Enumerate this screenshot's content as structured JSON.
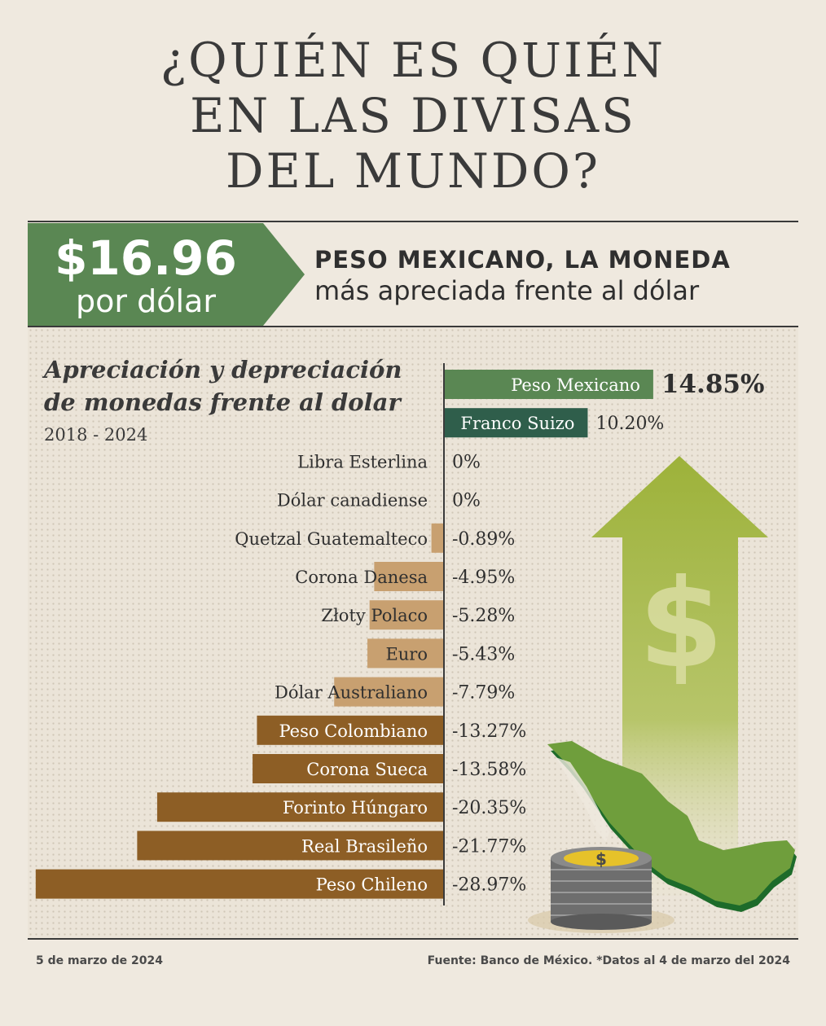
{
  "header": {
    "title_lines": [
      "¿QUIÉN ES QUIÉN",
      "EN LAS DIVISAS",
      "DEL MUNDO?"
    ]
  },
  "banner": {
    "price": "$16.96",
    "price_unit": "por dólar",
    "headline_bold": "PESO MEXICANO, LA MONEDA",
    "headline_rest": "más apreciada frente al dólar"
  },
  "chart_data": {
    "type": "bar",
    "orientation": "horizontal",
    "title": "Apreciación y depreciación de monedas frente al dolar",
    "subtitle": "2018 - 2024",
    "categories": [
      "Peso Mexicano",
      "Franco Suizo",
      "Libra Esterlina",
      "Dólar canadiense",
      "Quetzal Guatemalteco",
      "Corona Danesa",
      "Złoty Polaco",
      "Euro",
      "Dólar Australiano",
      "Peso Colombiano",
      "Corona Sueca",
      "Forinto Húngaro",
      "Real Brasileño",
      "Peso Chileno"
    ],
    "values": [
      14.85,
      10.2,
      0,
      0,
      -0.89,
      -4.95,
      -5.28,
      -5.43,
      -7.79,
      -13.27,
      -13.58,
      -20.35,
      -21.77,
      -28.97
    ],
    "value_labels": [
      "14.85%",
      "10.20%",
      "0%",
      "0%",
      "-0.89%",
      "-4.95%",
      "-5.28%",
      "-5.43%",
      "-7.79%",
      "-13.27%",
      "-13.58%",
      "-20.35%",
      "-21.77%",
      "-28.97%"
    ],
    "colors": {
      "peso_mexicano": "#5a8753",
      "franco_suizo": "#2f5e4b",
      "light_negative": "#c8a070",
      "dark_negative": "#8d5e25"
    }
  },
  "illustration": {
    "arrow_icon": "up-arrow-dollar-icon",
    "map_icon": "mexico-map-icon",
    "coins_icon": "coin-stack-icon",
    "coin_symbol": "$"
  },
  "footer": {
    "date": "5 de marzo de 2024",
    "source": "Fuente: Banco de México. *Datos al 4 de marzo del 2024"
  }
}
